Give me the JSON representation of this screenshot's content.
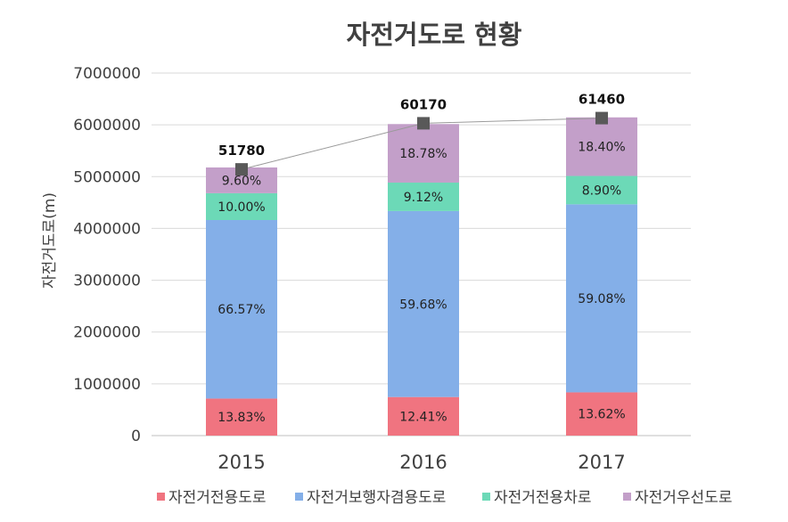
{
  "chart_data": {
    "type": "bar",
    "stacked": true,
    "title": "자전거도로 현황",
    "ylabel": "자전거도로(m)",
    "xlabel": "",
    "ylim": [
      0,
      7000000
    ],
    "yticks": [
      "0",
      "1000000",
      "2000000",
      "3000000",
      "4000000",
      "5000000",
      "6000000",
      "7000000"
    ],
    "categories": [
      "2015",
      "2016",
      "2017"
    ],
    "series": [
      {
        "name": "자전거전용도로",
        "color": "#f07480",
        "values": [
          715000,
          745000,
          835000
        ],
        "labels": [
          "13.83%",
          "12.41%",
          "13.62%"
        ]
      },
      {
        "name": "자전거보행자겸용도로",
        "color": "#84afe8",
        "values": [
          3447000,
          3591000,
          3631000
        ],
        "labels": [
          "66.57%",
          "59.68%",
          "59.08%"
        ]
      },
      {
        "name": "자전거전용차로",
        "color": "#6cd9b7",
        "values": [
          518000,
          549000,
          547000
        ],
        "labels": [
          "10.00%",
          "9.12%",
          "8.90%"
        ]
      },
      {
        "name": "자전거우선도로",
        "color": "#c39fc9",
        "values": [
          497000,
          1130000,
          1131000
        ],
        "labels": [
          "9.60%",
          "18.78%",
          "18.40%"
        ]
      }
    ],
    "total_line": {
      "labels": [
        "51780",
        "60170",
        "61460"
      ],
      "marker_values": [
        5140000,
        6030000,
        6130000
      ],
      "color": "#595959"
    },
    "legend_position": "bottom",
    "grid": true
  }
}
